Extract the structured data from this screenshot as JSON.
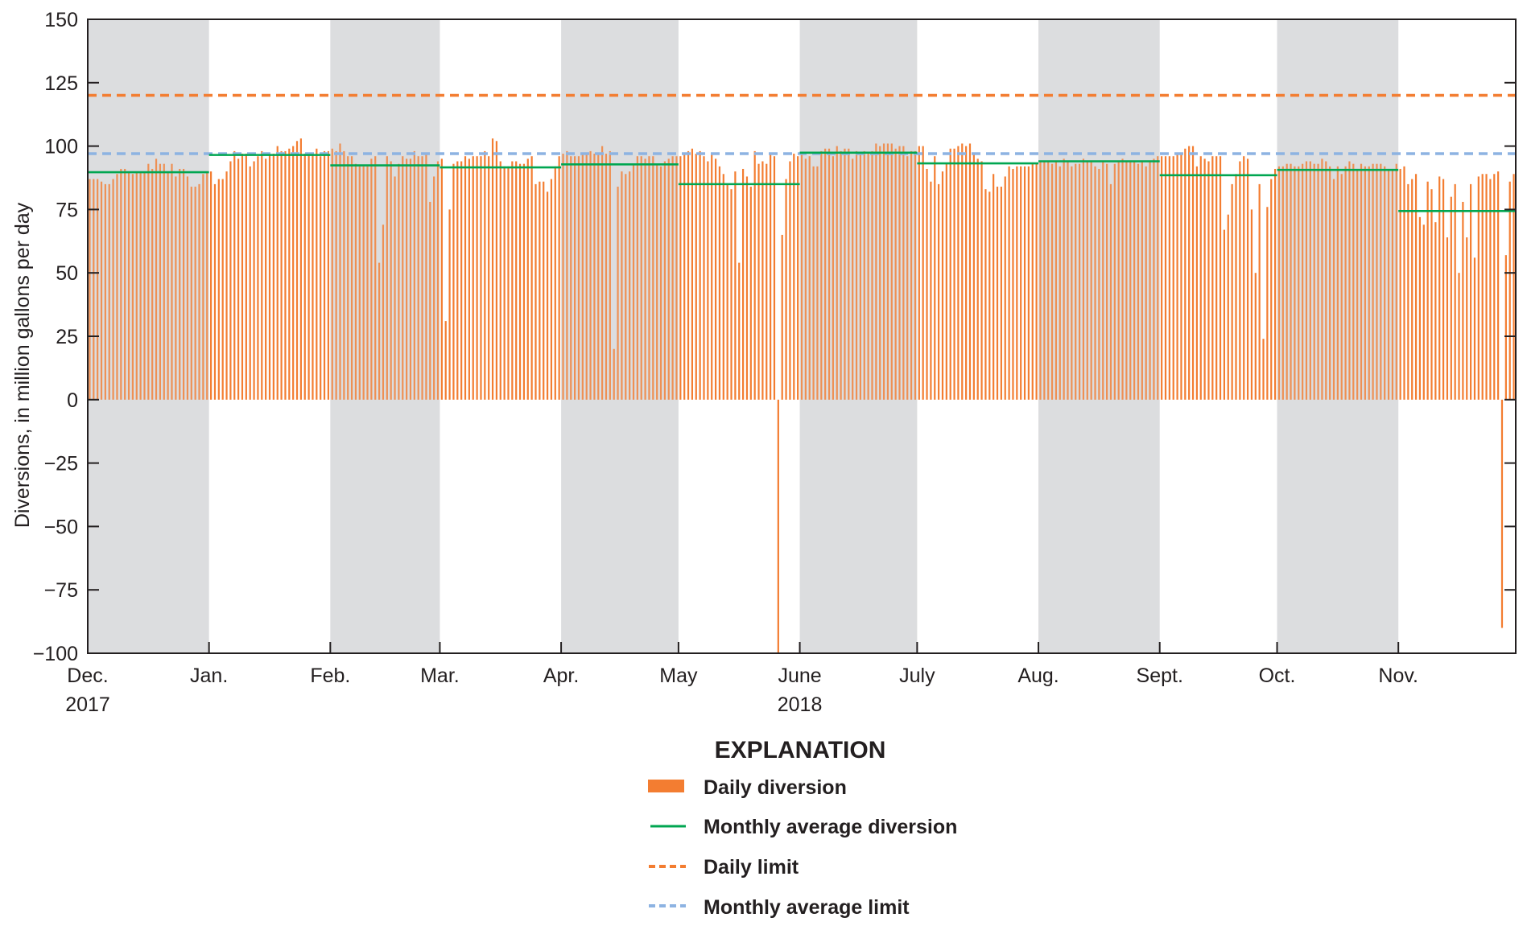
{
  "chart_data": {
    "type": "bar",
    "ylabel": "Diversions, in million gallons per day",
    "ylim": [
      -100,
      150
    ],
    "y_ticks": [
      "150",
      "125",
      "100",
      "75",
      "50",
      "25",
      "0",
      "−25",
      "−50",
      "−75",
      "−100"
    ],
    "y_tick_values": [
      150,
      125,
      100,
      75,
      50,
      25,
      0,
      -25,
      -50,
      -75,
      -100
    ],
    "x_tick_labels": [
      "Dec.",
      "Jan.",
      "Feb.",
      "Mar.",
      "Apr.",
      "May",
      "June",
      "July",
      "Aug.",
      "Sept.",
      "Oct.",
      "Nov."
    ],
    "year_labels": {
      "Dec.": "2017",
      "June": "2018"
    },
    "shaded_months": [
      "Dec.",
      "Feb.",
      "Apr.",
      "June",
      "Aug.",
      "Oct."
    ],
    "grid": false,
    "legend_title": "EXPLANATION",
    "legend_placement": "bottom-center",
    "series": [
      {
        "name": "Daily diversion",
        "type": "bar",
        "color": "#f37d31",
        "months": [
          {
            "month": "Dec.",
            "values": [
              87,
              87,
              87,
              86,
              85,
              85,
              87,
              89,
              91,
              91,
              90,
              89,
              90,
              90,
              90,
              93,
              91,
              95,
              93,
              93,
              90,
              93,
              88,
              91,
              91,
              88,
              84,
              84,
              85,
              89,
              90
            ]
          },
          {
            "month": "Jan.",
            "values": [
              90,
              85,
              87,
              87,
              90,
              94,
              98,
              95,
              97,
              97,
              92,
              94,
              96,
              98,
              95,
              97,
              97,
              100,
              98,
              98,
              99,
              100,
              102,
              103,
              97,
              97,
              97,
              99,
              96,
              98,
              98
            ]
          },
          {
            "month": "Feb.",
            "values": [
              99,
              98,
              101,
              98,
              96,
              96,
              93,
              92,
              92,
              92,
              95,
              96,
              54,
              69,
              96,
              94,
              88,
              93,
              96,
              95,
              95,
              98,
              96,
              96,
              97,
              78,
              88,
              94
            ]
          },
          {
            "month": "Mar.",
            "values": [
              95,
              31,
              75,
              93,
              94,
              94,
              96,
              95,
              96,
              96,
              96,
              98,
              96,
              103,
              102,
              94,
              92,
              92,
              94,
              94,
              93,
              93,
              95,
              96,
              85,
              86,
              86,
              82,
              87,
              92,
              96
            ]
          },
          {
            "month": "Apr.",
            "values": [
              97,
              98,
              96,
              96,
              96,
              97,
              97,
              98,
              97,
              97,
              100,
              97,
              98,
              20,
              84,
              90,
              89,
              90,
              93,
              96,
              96,
              95,
              96,
              96,
              93,
              92,
              94,
              95,
              96,
              96
            ]
          },
          {
            "month": "May",
            "values": [
              96,
              97,
              98,
              99,
              97,
              98,
              96,
              94,
              97,
              95,
              92,
              89,
              85,
              83,
              90,
              54,
              91,
              88,
              84,
              98,
              93,
              94,
              93,
              97,
              96,
              -100,
              65,
              87,
              94,
              97,
              96
            ]
          },
          {
            "month": "June",
            "values": [
              97,
              95,
              96,
              92,
              92,
              98,
              99,
              99,
              96,
              100,
              98,
              99,
              99,
              95,
              98,
              97,
              98,
              97,
              98,
              101,
              100,
              101,
              101,
              101,
              99,
              100,
              100,
              96,
              98,
              98
            ]
          },
          {
            "month": "July",
            "values": [
              100,
              100,
              91,
              86,
              96,
              85,
              90,
              93,
              99,
              99,
              100,
              101,
              100,
              101,
              97,
              95,
              94,
              83,
              82,
              89,
              84,
              84,
              88,
              92,
              91,
              92,
              92,
              92,
              92,
              93,
              93
            ]
          },
          {
            "month": "Aug.",
            "values": [
              94,
              94,
              94,
              93,
              94,
              92,
              95,
              94,
              92,
              93,
              93,
              95,
              94,
              94,
              92,
              91,
              94,
              93,
              85,
              93,
              94,
              95,
              94,
              94,
              94,
              93,
              94,
              92,
              94,
              95,
              96
            ]
          },
          {
            "month": "Sept.",
            "values": [
              96,
              96,
              96,
              96,
              97,
              97,
              99,
              100,
              100,
              92,
              96,
              95,
              94,
              96,
              96,
              96,
              67,
              73,
              85,
              89,
              94,
              96,
              95,
              75,
              50,
              85,
              24,
              76,
              87,
              91
            ]
          },
          {
            "month": "Oct.",
            "values": [
              92,
              92,
              93,
              93,
              92,
              92,
              93,
              94,
              94,
              93,
              93,
              95,
              94,
              92,
              87,
              92,
              89,
              92,
              94,
              93,
              91,
              93,
              92,
              92,
              93,
              93,
              93,
              92,
              91,
              91,
              93
            ]
          },
          {
            "month": "Nov.",
            "values": [
              91,
              92,
              85,
              87,
              89,
              72,
              69,
              86,
              83,
              70,
              88,
              87,
              64,
              80,
              85,
              50,
              78,
              64,
              85,
              56,
              88,
              89,
              89,
              87,
              89,
              90,
              -90,
              57,
              86,
              89
            ]
          }
        ]
      },
      {
        "name": "Monthly average diversion",
        "type": "step",
        "color": "#00a651",
        "values": [
          89.7,
          96.5,
          92.4,
          91.6,
          92.8,
          85.0,
          97.4,
          93.2,
          94.0,
          88.5,
          90.6,
          74.4
        ]
      },
      {
        "name": "Daily limit",
        "type": "hline",
        "color": "#f37d31",
        "value": 120
      },
      {
        "name": "Monthly average limit",
        "type": "hline",
        "color": "#8db3e2",
        "value": 97
      }
    ]
  }
}
